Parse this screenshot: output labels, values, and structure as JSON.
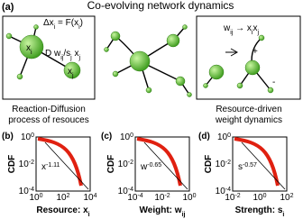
{
  "title": "Co-evolving network dynamics",
  "panel_a": {
    "label": "(a)",
    "left": {
      "eq1": [
        "Δx",
        "i",
        " = F(x",
        "i",
        ")"
      ],
      "eq2": [
        "D ",
        "",
        "w",
        "ij",
        "/s",
        "j",
        " x",
        "j"
      ],
      "node_i": [
        "x",
        "i"
      ],
      "node_j": [
        "x",
        "j"
      ],
      "caption": [
        "Reaction-Diffusion",
        "process of resouces"
      ]
    },
    "right": {
      "eq": [
        "w",
        "ij",
        " → x",
        "i",
        "x",
        "j"
      ],
      "plus": "+",
      "minus": "-",
      "caption": [
        "Resource-driven",
        "weight dynamics"
      ]
    }
  },
  "plots": [
    {
      "label": "(b)",
      "ylabel": "CDF",
      "xlabel": [
        "Resource: x",
        "i"
      ],
      "fit": [
        "x",
        "-1.11"
      ],
      "xticks": [
        [
          "10",
          "0"
        ],
        [
          "10",
          "2"
        ],
        [
          "10",
          "4"
        ]
      ],
      "yticks": [
        [
          "10",
          "-4"
        ],
        [
          "10",
          "-2"
        ],
        [
          "10",
          "0"
        ]
      ]
    },
    {
      "label": "(c)",
      "ylabel": "CDF",
      "xlabel": [
        "Weight: w",
        "ij"
      ],
      "fit": [
        "w",
        "-0.65"
      ],
      "xticks": [
        [
          "10",
          "-4"
        ],
        [
          "10",
          "-2"
        ],
        [
          "10",
          "0"
        ]
      ],
      "yticks": [
        [
          "10",
          "-4"
        ],
        [
          "10",
          "-2"
        ],
        [
          "10",
          "0"
        ]
      ]
    },
    {
      "label": "(d)",
      "ylabel": "CDF",
      "xlabel": [
        "Strength: s",
        "i"
      ],
      "fit": [
        "s",
        "-0.57"
      ],
      "xticks": [
        [
          "10",
          "-2"
        ],
        [
          "10",
          "0"
        ],
        [
          "10",
          "2"
        ]
      ],
      "yticks": [
        [
          "10",
          "-4"
        ],
        [
          "10",
          "-2"
        ],
        [
          "10",
          "0"
        ]
      ]
    }
  ]
}
